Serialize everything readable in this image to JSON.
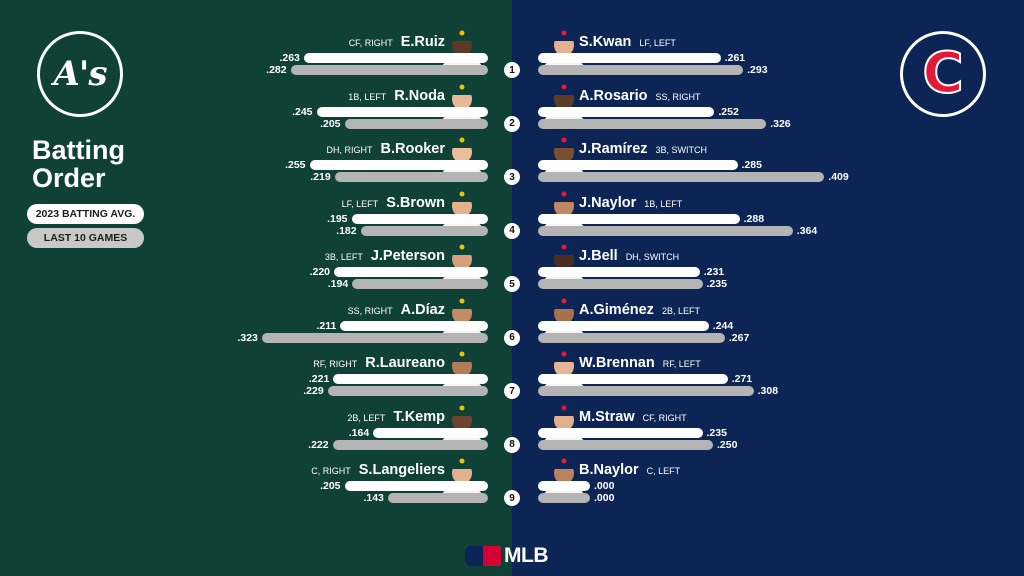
{
  "title_line1": "Batting",
  "title_line2": "Order",
  "legend": {
    "primary": "2023 BATTING AVG.",
    "secondary": "LAST 10 GAMES"
  },
  "colors": {
    "athletics_bg": "#0f4136",
    "guardians_bg": "#0c2554",
    "guardians_red": "#e31937"
  },
  "logos": {
    "left": "A's",
    "right": "C"
  },
  "scale_max_avg": 0.409,
  "footer_logo_text": "MLB",
  "order_numbers": [
    "1",
    "2",
    "3",
    "4",
    "5",
    "6",
    "7",
    "8",
    "9"
  ],
  "athletics": [
    {
      "name": "E.Ruiz",
      "pos": "CF, RIGHT",
      "avg": ".263",
      "last10": ".282",
      "avg_val": 0.263,
      "last10_val": 0.282,
      "skin": "#5a3a26",
      "cap": "#0f4136"
    },
    {
      "name": "R.Noda",
      "pos": "1B, LEFT",
      "avg": ".245",
      "last10": ".205",
      "avg_val": 0.245,
      "last10_val": 0.205,
      "skin": "#e8b896",
      "cap": "#0f4136"
    },
    {
      "name": "B.Rooker",
      "pos": "DH, RIGHT",
      "avg": ".255",
      "last10": ".219",
      "avg_val": 0.255,
      "last10_val": 0.219,
      "skin": "#e9bd9a",
      "cap": "#0f4136"
    },
    {
      "name": "S.Brown",
      "pos": "LF, LEFT",
      "avg": ".195",
      "last10": ".182",
      "avg_val": 0.195,
      "last10_val": 0.182,
      "skin": "#e5b08c",
      "cap": "#0f4136"
    },
    {
      "name": "J.Peterson",
      "pos": "3B, LEFT",
      "avg": ".220",
      "last10": ".194",
      "avg_val": 0.22,
      "last10_val": 0.194,
      "skin": "#d69e7a",
      "cap": "#0f4136"
    },
    {
      "name": "A.Díaz",
      "pos": "SS, RIGHT",
      "avg": ".211",
      "last10": ".323",
      "avg_val": 0.211,
      "last10_val": 0.323,
      "skin": "#c48a64",
      "cap": "#0f4136"
    },
    {
      "name": "R.Laureano",
      "pos": "RF, RIGHT",
      "avg": ".221",
      "last10": ".229",
      "avg_val": 0.221,
      "last10_val": 0.229,
      "skin": "#b57d55",
      "cap": "#0f4136"
    },
    {
      "name": "T.Kemp",
      "pos": "2B, LEFT",
      "avg": ".164",
      "last10": ".222",
      "avg_val": 0.164,
      "last10_val": 0.222,
      "skin": "#6b4530",
      "cap": "#0f4136"
    },
    {
      "name": "S.Langeliers",
      "pos": "C, RIGHT",
      "avg": ".205",
      "last10": ".143",
      "avg_val": 0.205,
      "last10_val": 0.143,
      "skin": "#e3b18f",
      "cap": "#0f4136"
    }
  ],
  "guardians": [
    {
      "name": "S.Kwan",
      "pos": "LF, LEFT",
      "avg": ".261",
      "last10": ".293",
      "avg_val": 0.261,
      "last10_val": 0.293,
      "skin": "#e2b38e",
      "cap": "#0c2554"
    },
    {
      "name": "A.Rosario",
      "pos": "SS, RIGHT",
      "avg": ".252",
      "last10": ".326",
      "avg_val": 0.252,
      "last10_val": 0.326,
      "skin": "#5c3b27",
      "cap": "#0c2554"
    },
    {
      "name": "J.Ramírez",
      "pos": "3B, SWITCH",
      "avg": ".285",
      "last10": ".409",
      "avg_val": 0.285,
      "last10_val": 0.409,
      "skin": "#7a4e33",
      "cap": "#0c2554"
    },
    {
      "name": "J.Naylor",
      "pos": "1B, LEFT",
      "avg": ".288",
      "last10": ".364",
      "avg_val": 0.288,
      "last10_val": 0.364,
      "skin": "#c08764",
      "cap": "#0c2554"
    },
    {
      "name": "J.Bell",
      "pos": "DH, SWITCH",
      "avg": ".231",
      "last10": ".235",
      "avg_val": 0.231,
      "last10_val": 0.235,
      "skin": "#4a2f20",
      "cap": "#0c2554"
    },
    {
      "name": "A.Giménez",
      "pos": "2B, LEFT",
      "avg": ".244",
      "last10": ".267",
      "avg_val": 0.244,
      "last10_val": 0.267,
      "skin": "#a8714c",
      "cap": "#0c2554"
    },
    {
      "name": "W.Brennan",
      "pos": "RF, LEFT",
      "avg": ".271",
      "last10": ".308",
      "avg_val": 0.271,
      "last10_val": 0.308,
      "skin": "#e5b694",
      "cap": "#0c2554"
    },
    {
      "name": "M.Straw",
      "pos": "CF, RIGHT",
      "avg": ".235",
      "last10": ".250",
      "avg_val": 0.235,
      "last10_val": 0.25,
      "skin": "#e0b08c",
      "cap": "#0c2554"
    },
    {
      "name": "B.Naylor",
      "pos": "C, LEFT",
      "avg": ".000",
      "last10": ".000",
      "avg_val": 0.0,
      "last10_val": 0.0,
      "skin": "#b98260",
      "cap": "#0c2554"
    }
  ]
}
